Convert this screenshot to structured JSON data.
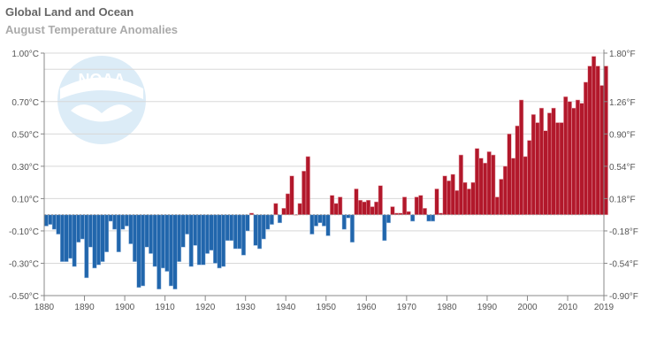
{
  "header": {
    "title": "Global Land and Ocean",
    "subtitle": "August Temperature Anomalies"
  },
  "logo": {
    "text": "NOAA"
  },
  "colors": {
    "positive": "#b2182b",
    "negative": "#2166ac",
    "grid": "#d8d8d8"
  },
  "chart_data": {
    "type": "bar",
    "title": "Global Land and Ocean",
    "subtitle": "August Temperature Anomalies",
    "x_start": 1880,
    "x_end": 2019,
    "ylim": [
      -0.5,
      1.0
    ],
    "grid": true,
    "left_ticks": [
      {
        "v": 1.0,
        "label": "1.00°C"
      },
      {
        "v": 0.7,
        "label": "0.70°C"
      },
      {
        "v": 0.5,
        "label": "0.50°C"
      },
      {
        "v": 0.3,
        "label": "0.30°C"
      },
      {
        "v": 0.1,
        "label": "0.10°C"
      },
      {
        "v": -0.1,
        "label": "-0.10°C"
      },
      {
        "v": -0.3,
        "label": "-0.30°C"
      },
      {
        "v": -0.5,
        "label": "-0.50°C"
      }
    ],
    "right_ticks": [
      {
        "v": 1.0,
        "label": "1.80°F"
      },
      {
        "v": 0.7,
        "label": "1.26°F"
      },
      {
        "v": 0.5,
        "label": "0.90°F"
      },
      {
        "v": 0.3,
        "label": "0.54°F"
      },
      {
        "v": 0.1,
        "label": "0.18°F"
      },
      {
        "v": -0.1,
        "label": "-0.18°F"
      },
      {
        "v": -0.3,
        "label": "-0.54°F"
      },
      {
        "v": -0.5,
        "label": "-0.90°F"
      }
    ],
    "grid_values": [
      -0.5,
      -0.3,
      -0.1,
      0.1,
      0.3,
      0.5,
      0.7,
      0.9,
      1.0
    ],
    "x_ticks": [
      "1880",
      "1890",
      "1900",
      "1910",
      "1920",
      "1930",
      "1940",
      "1950",
      "1960",
      "1970",
      "1980",
      "1990",
      "2000",
      "2010",
      "2019"
    ],
    "values": [
      -0.07,
      -0.06,
      -0.09,
      -0.12,
      -0.29,
      -0.29,
      -0.27,
      -0.32,
      -0.17,
      -0.15,
      -0.39,
      -0.2,
      -0.33,
      -0.31,
      -0.29,
      -0.23,
      -0.04,
      -0.09,
      -0.23,
      -0.09,
      -0.07,
      -0.18,
      -0.29,
      -0.45,
      -0.44,
      -0.2,
      -0.24,
      -0.32,
      -0.46,
      -0.33,
      -0.35,
      -0.44,
      -0.46,
      -0.29,
      -0.2,
      -0.12,
      -0.32,
      -0.19,
      -0.31,
      -0.31,
      -0.24,
      -0.22,
      -0.3,
      -0.33,
      -0.32,
      -0.16,
      -0.16,
      -0.21,
      -0.21,
      -0.25,
      -0.1,
      0.01,
      -0.19,
      -0.21,
      -0.15,
      -0.09,
      -0.06,
      0.07,
      -0.05,
      0.04,
      0.13,
      0.24,
      0.0,
      0.07,
      0.27,
      0.36,
      -0.12,
      -0.07,
      -0.05,
      -0.07,
      -0.13,
      0.12,
      0.07,
      0.11,
      -0.09,
      -0.02,
      -0.17,
      0.16,
      0.09,
      0.08,
      0.09,
      0.05,
      0.08,
      0.18,
      -0.16,
      -0.05,
      0.05,
      0.01,
      0.01,
      0.11,
      0.02,
      -0.04,
      0.11,
      0.12,
      0.04,
      -0.04,
      -0.04,
      0.16,
      0.01,
      0.24,
      0.21,
      0.25,
      0.15,
      0.37,
      0.2,
      0.16,
      0.2,
      0.41,
      0.35,
      0.32,
      0.39,
      0.37,
      0.11,
      0.22,
      0.3,
      0.5,
      0.35,
      0.55,
      0.71,
      0.36,
      0.46,
      0.62,
      0.57,
      0.66,
      0.52,
      0.63,
      0.66,
      0.57,
      0.57,
      0.73,
      0.7,
      0.66,
      0.71,
      0.69,
      0.82,
      0.92,
      0.98,
      0.92,
      0.8,
      0.92
    ]
  }
}
